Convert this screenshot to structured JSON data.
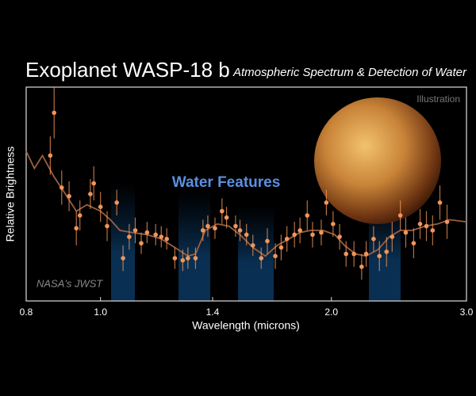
{
  "chart_data": {
    "type": "scatter",
    "title": "Exoplanet WASP-18 b",
    "subtitle": "Atmospheric Spectrum & Detection of Water",
    "x_label": "Wavelength (microns)",
    "y_label": "Relative Brightness",
    "annotations": [
      "Water Features",
      "Illustration",
      "NASA's JWST"
    ],
    "xscale": "log",
    "xlim": [
      0.8,
      3.0
    ],
    "xticks": [
      0.8,
      {
        "value": 1.0,
        "label": "1.0"
      },
      1.4,
      {
        "value": 2.0,
        "label": "2.0"
      },
      {
        "value": 3.0,
        "label": "3.0"
      }
    ],
    "ylim": [
      0,
      100
    ],
    "series": [
      {
        "color": "#f0955a",
        "x": [
          0.86,
          0.87,
          0.89,
          0.91,
          0.93,
          0.94,
          0.97,
          0.98,
          1.0,
          1.02,
          1.05,
          1.07,
          1.09,
          1.11,
          1.13,
          1.15,
          1.18,
          1.2,
          1.22,
          1.25,
          1.28,
          1.3,
          1.33,
          1.36,
          1.38,
          1.41,
          1.44,
          1.46,
          1.5,
          1.52,
          1.55,
          1.58,
          1.62,
          1.65,
          1.69,
          1.72,
          1.75,
          1.79,
          1.82,
          1.86,
          1.89,
          1.94,
          1.97,
          2.01,
          2.05,
          2.09,
          2.14,
          2.19,
          2.22,
          2.27,
          2.31,
          2.36,
          2.4,
          2.46,
          2.5,
          2.56,
          2.61,
          2.66,
          2.71,
          2.77,
          2.83
        ],
        "values": [
          68,
          88,
          53,
          49,
          34,
          40,
          50,
          55,
          44,
          35,
          46,
          20,
          30,
          33,
          27,
          32,
          31,
          30,
          29,
          20,
          19,
          20,
          20,
          33,
          35,
          34,
          42,
          39,
          35,
          33,
          31,
          26,
          20,
          28,
          21,
          25,
          29,
          31,
          33,
          40,
          31,
          32,
          46,
          36,
          30,
          22,
          22,
          16,
          22,
          29,
          21,
          23,
          30,
          40,
          32,
          27,
          36,
          35,
          33,
          46,
          37
        ],
        "errors": [
          9,
          12,
          8,
          7,
          8,
          7,
          7,
          8,
          7,
          7,
          6,
          6,
          6,
          6,
          5,
          5,
          5,
          5,
          5,
          5,
          5,
          5,
          5,
          5,
          5,
          5,
          6,
          5,
          5,
          5,
          5,
          5,
          5,
          6,
          6,
          6,
          6,
          6,
          6,
          7,
          6,
          6,
          6,
          6,
          6,
          6,
          6,
          6,
          6,
          6,
          7,
          7,
          7,
          7,
          7,
          7,
          7,
          7,
          7,
          8,
          8
        ]
      }
    ],
    "model": {
      "color": "#9a5f3e",
      "x": [
        0.8,
        0.82,
        0.84,
        0.87,
        0.9,
        0.93,
        0.96,
        1.0,
        1.03,
        1.06,
        1.1,
        1.15,
        1.2,
        1.25,
        1.3,
        1.33,
        1.37,
        1.42,
        1.47,
        1.52,
        1.58,
        1.64,
        1.7,
        1.76,
        1.82,
        1.88,
        1.95,
        2.02,
        2.08,
        2.15,
        2.22,
        2.3,
        2.38,
        2.46,
        2.55,
        2.65,
        2.75,
        2.85,
        3.0
      ],
      "values": [
        70,
        62,
        68,
        58,
        50,
        42,
        45,
        42,
        38,
        33,
        32,
        31,
        29,
        25,
        21,
        22,
        33,
        36,
        35,
        31,
        25,
        21,
        26,
        29,
        32,
        33,
        33,
        31,
        26,
        22,
        21,
        24,
        30,
        33,
        33,
        35,
        36,
        38,
        37
      ]
    }
  }
}
